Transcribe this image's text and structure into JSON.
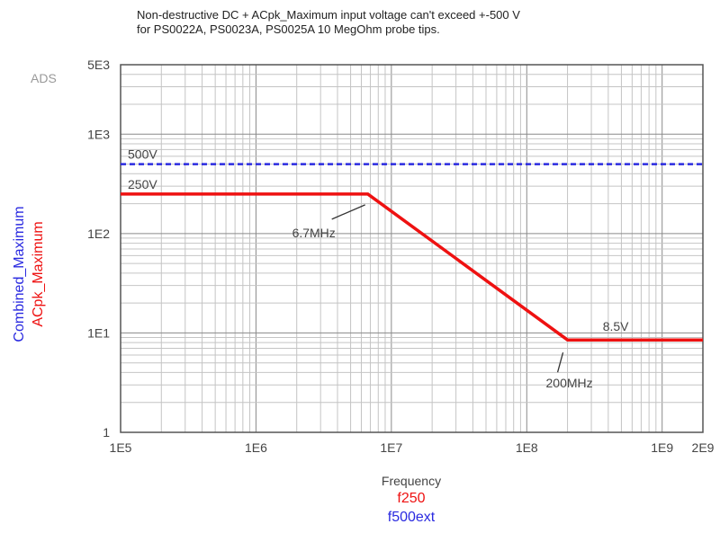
{
  "chart_data": {
    "type": "line",
    "title_line1": "Non-destructive DC + ACpk_Maximum input voltage can't exceed +-500 V",
    "title_line2": "for PS0022A, PS0023A, PS0025A 10 MegOhm probe tips.",
    "corner_label": "ADS",
    "xlabel": "Frequency",
    "xlabel_series": [
      {
        "text": "f250",
        "color": "#ee1111"
      },
      {
        "text": "f500ext",
        "color": "#2a2ae0"
      }
    ],
    "ylabel_series": [
      {
        "text": "Combined_Maximum",
        "color": "#2a2ae0"
      },
      {
        "text": "ACpk_Maximum",
        "color": "#ee1111"
      }
    ],
    "xscale": "log",
    "yscale": "log",
    "xlim": [
      100000,
      2000000000
    ],
    "ylim": [
      1,
      5000
    ],
    "grid": true,
    "xticks": [
      {
        "value": 100000,
        "label": "1E5"
      },
      {
        "value": 1000000,
        "label": "1E6"
      },
      {
        "value": 10000000,
        "label": "1E7"
      },
      {
        "value": 100000000,
        "label": "1E8"
      },
      {
        "value": 1000000000,
        "label": "1E9"
      },
      {
        "value": 2000000000,
        "label": "2E9"
      }
    ],
    "yticks": [
      {
        "value": 1,
        "label": "1"
      },
      {
        "value": 10,
        "label": "1E1"
      },
      {
        "value": 100,
        "label": "1E2"
      },
      {
        "value": 1000,
        "label": "1E3"
      },
      {
        "value": 5000,
        "label": "5E3"
      }
    ],
    "series": [
      {
        "color": "#2a2ae0",
        "dashed": true,
        "x": [
          100000,
          2000000000
        ],
        "y": [
          500,
          500
        ]
      },
      {
        "color": "#ee1111",
        "dashed": false,
        "x": [
          100000,
          6700000,
          200000000,
          2000000000
        ],
        "y": [
          250,
          250,
          8.5,
          8.5
        ]
      }
    ],
    "annotations": [
      {
        "text": "500V",
        "x": 100000,
        "y": 500,
        "type": "level"
      },
      {
        "text": "250V",
        "x": 100000,
        "y": 250,
        "type": "level"
      },
      {
        "text": "6.7MHz",
        "x": 6700000,
        "y": 250,
        "type": "pointer"
      },
      {
        "text": "200MHz",
        "x": 200000000,
        "y": 8.5,
        "type": "pointer"
      },
      {
        "text": "8.5V",
        "x": 1000000000,
        "y": 8.5,
        "type": "level-right"
      }
    ]
  }
}
